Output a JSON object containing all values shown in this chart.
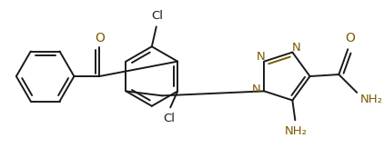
{
  "bg_color": "#ffffff",
  "line_color": "#1a1a1a",
  "n_color": "#7b5a00",
  "o_color": "#7b5a00",
  "lw": 1.4,
  "figsize": [
    4.22,
    1.74
  ],
  "dpi": 100,
  "xlim": [
    0,
    422
  ],
  "ylim": [
    0,
    174
  ]
}
